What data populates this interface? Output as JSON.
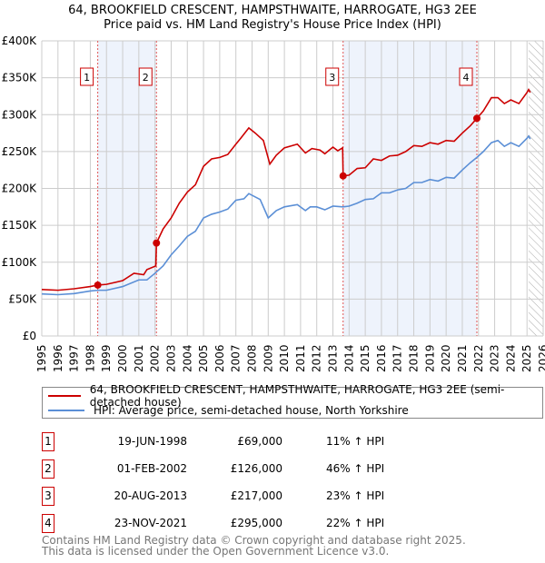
{
  "title": "64, BROOKFIELD CRESCENT, HAMPSTHWAITE, HARROGATE, HG3 2EE",
  "subtitle": "Price paid vs. HM Land Registry's House Price Index (HPI)",
  "chart_data": {
    "type": "line",
    "xlim": [
      1995,
      2026
    ],
    "ylim": [
      0,
      400000
    ],
    "y_ticks": [
      {
        "v": 0,
        "label": "£0"
      },
      {
        "v": 50000,
        "label": "£50K"
      },
      {
        "v": 100000,
        "label": "£100K"
      },
      {
        "v": 150000,
        "label": "£150K"
      },
      {
        "v": 200000,
        "label": "£200K"
      },
      {
        "v": 250000,
        "label": "£250K"
      },
      {
        "v": 300000,
        "label": "£300K"
      },
      {
        "v": 350000,
        "label": "£350K"
      },
      {
        "v": 400000,
        "label": "£400K"
      }
    ],
    "x_ticks": [
      "1995",
      "1996",
      "1997",
      "1998",
      "1999",
      "2000",
      "2001",
      "2002",
      "2003",
      "2004",
      "2005",
      "2006",
      "2007",
      "2008",
      "2009",
      "2010",
      "2011",
      "2012",
      "2013",
      "2014",
      "2015",
      "2016",
      "2017",
      "2018",
      "2019",
      "2020",
      "2021",
      "2022",
      "2023",
      "2024",
      "2025",
      "2026"
    ],
    "shaded_ranges": [
      [
        1998.46,
        2002.09
      ],
      [
        2013.63,
        2021.9
      ]
    ],
    "forecast_from": 2025.1,
    "series": [
      {
        "name": "64, BROOKFIELD CRESCENT, HAMPSTHWAITE, HARROGATE, HG3 2EE (semi-detached house)",
        "color": "#cc0000",
        "x": [
          1995,
          1996,
          1997,
          1998,
          1998.46,
          1999,
          2000,
          2000.7,
          2001.3,
          2001.5,
          2002.05,
          2002.09,
          2002.5,
          2003,
          2003.5,
          2004,
          2004.5,
          2005,
          2005.5,
          2006,
          2006.5,
          2007,
          2007.3,
          2007.8,
          2008.2,
          2008.7,
          2009.1,
          2009.5,
          2010,
          2010.8,
          2011.3,
          2011.7,
          2012.2,
          2012.5,
          2013,
          2013.3,
          2013.6,
          2013.63,
          2014,
          2014.5,
          2015,
          2015.5,
          2016,
          2016.5,
          2017,
          2017.5,
          2018,
          2018.5,
          2019,
          2019.5,
          2020,
          2020.5,
          2021,
          2021.5,
          2021.9,
          2022.3,
          2022.8,
          2023.2,
          2023.6,
          2024,
          2024.5,
          2025,
          2025.1,
          2025.2
        ],
        "y": [
          63000,
          62000,
          64000,
          67000,
          69000,
          70000,
          75000,
          85000,
          83000,
          90000,
          95000,
          126000,
          145000,
          160000,
          180000,
          195000,
          205000,
          230000,
          240000,
          242000,
          246000,
          260000,
          268000,
          282000,
          275000,
          265000,
          233000,
          245000,
          255000,
          260000,
          248000,
          254000,
          252000,
          247000,
          256000,
          251000,
          255000,
          217000,
          218000,
          227000,
          228000,
          240000,
          238000,
          244000,
          245000,
          250000,
          258000,
          257000,
          262000,
          260000,
          265000,
          264000,
          275000,
          285000,
          295000,
          305000,
          323000,
          323000,
          315000,
          320000,
          315000,
          330000,
          334000,
          330000
        ]
      },
      {
        "name": "HPI: Average price, semi-detached house, North Yorkshire",
        "color": "#5b8fd6",
        "x": [
          1995,
          1996,
          1997,
          1998,
          1998.5,
          1999,
          2000,
          2001,
          2001.5,
          2002,
          2002.5,
          2003,
          2003.5,
          2004,
          2004.5,
          2005,
          2005.5,
          2006,
          2006.5,
          2007,
          2007.5,
          2007.8,
          2008.5,
          2009,
          2009.5,
          2010,
          2010.8,
          2011.3,
          2011.6,
          2012,
          2012.5,
          2013,
          2013.6,
          2014,
          2014.5,
          2015,
          2015.5,
          2016,
          2016.5,
          2017,
          2017.5,
          2018,
          2018.5,
          2019,
          2019.5,
          2020,
          2020.5,
          2021,
          2021.5,
          2021.9,
          2022.3,
          2022.8,
          2023.2,
          2023.6,
          2024,
          2024.5,
          2025,
          2025.1,
          2025.2
        ],
        "y": [
          57000,
          56000,
          57500,
          61000,
          62000,
          62000,
          67000,
          76000,
          76000,
          85000,
          95000,
          110000,
          122000,
          135000,
          142000,
          160000,
          165000,
          168000,
          172000,
          184000,
          186000,
          193000,
          185000,
          160000,
          170000,
          175000,
          178000,
          170000,
          175000,
          175000,
          171000,
          176000,
          175000,
          176000,
          180000,
          185000,
          186000,
          194000,
          194000,
          198000,
          200000,
          208000,
          208000,
          212000,
          210000,
          215000,
          214000,
          225000,
          235000,
          242000,
          250000,
          262000,
          265000,
          257000,
          262000,
          257000,
          268000,
          271000,
          267000
        ]
      }
    ],
    "sales": [
      {
        "n": "1",
        "x": 1998.46,
        "y": 69000,
        "date": "19-JUN-1998",
        "price": "£69,000",
        "hpi": "11% ↑ HPI"
      },
      {
        "n": "2",
        "x": 2002.09,
        "y": 126000,
        "date": "01-FEB-2002",
        "price": "£126,000",
        "hpi": "46% ↑ HPI"
      },
      {
        "n": "3",
        "x": 2013.63,
        "y": 217000,
        "date": "20-AUG-2013",
        "price": "£217,000",
        "hpi": "23% ↑ HPI"
      },
      {
        "n": "4",
        "x": 2021.9,
        "y": 295000,
        "date": "23-NOV-2021",
        "price": "£295,000",
        "hpi": "22% ↑ HPI"
      }
    ]
  },
  "footer": [
    "Contains HM Land Registry data © Crown copyright and database right 2025.",
    "This data is licensed under the Open Government Licence v3.0."
  ]
}
